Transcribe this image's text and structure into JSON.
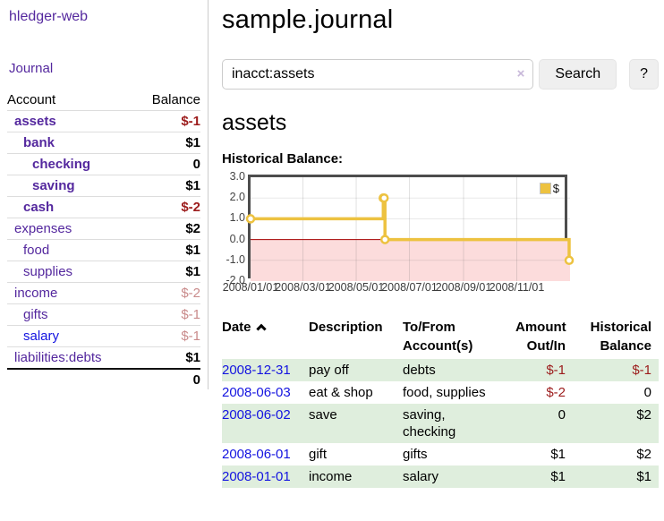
{
  "colors": {
    "link_purple": "#54289e",
    "link_blue": "#1414e0",
    "negative_strong": "#9c1c1c",
    "negative_faded": "#c98b8b",
    "row_stripe_green": "#dfeedd",
    "series_gold": "#edc240"
  },
  "sidebar": {
    "app_title": "hledger-web",
    "journal_link": "Journal",
    "accounts": {
      "header_account": "Account",
      "header_balance": "Balance",
      "rows": [
        {
          "name": "assets",
          "depth": 1,
          "selected": true,
          "balance": "$-1",
          "negative": "strong"
        },
        {
          "name": "bank",
          "depth": 2,
          "selected": true,
          "balance": "$1"
        },
        {
          "name": "checking",
          "depth": 3,
          "selected": true,
          "balance": "0"
        },
        {
          "name": "saving",
          "depth": 3,
          "selected": true,
          "balance": "$1"
        },
        {
          "name": "cash",
          "depth": 2,
          "selected": true,
          "balance": "$-2",
          "negative": "strong"
        },
        {
          "name": "expenses",
          "depth": 1,
          "selected": false,
          "balance": "$2"
        },
        {
          "name": "food",
          "depth": 2,
          "selected": false,
          "balance": "$1"
        },
        {
          "name": "supplies",
          "depth": 2,
          "selected": false,
          "balance": "$1"
        },
        {
          "name": "income",
          "depth": 1,
          "selected": false,
          "balance": "$-2",
          "negative": "faded"
        },
        {
          "name": "gifts",
          "depth": 2,
          "selected": false,
          "balance": "$-1",
          "negative": "faded"
        },
        {
          "name": "salary",
          "depth": 2,
          "selected": false,
          "balance": "$-1",
          "negative": "faded",
          "link": "blue"
        },
        {
          "name": "liabilities:debts",
          "depth": 1,
          "selected": false,
          "balance": "$1"
        }
      ],
      "total": "0"
    }
  },
  "main": {
    "title": "sample.journal",
    "search": {
      "value": "inacct:assets",
      "clear_icon": "×",
      "button_label": "Search",
      "help_label": "?"
    },
    "account_heading": "assets",
    "chart_label": "Historical Balance:",
    "register": {
      "headers": {
        "date": "Date",
        "description": "Description",
        "tofrom_line1": "To/From",
        "tofrom_line2": "Account(s)",
        "amount_line1": "Amount",
        "amount_line2": "Out/In",
        "balance_line1": "Historical",
        "balance_line2": "Balance"
      },
      "sort": "ascending",
      "rows": [
        {
          "date": "2008-12-31",
          "description": "pay off",
          "accounts": "debts",
          "amount": "$-1",
          "amount_neg": true,
          "balance": "$-1",
          "balance_neg": true
        },
        {
          "date": "2008-06-03",
          "description": "eat & shop",
          "accounts": "food, supplies",
          "amount": "$-2",
          "amount_neg": true,
          "balance": "0",
          "balance_neg": false
        },
        {
          "date": "2008-06-02",
          "description": "save",
          "accounts": "saving, checking",
          "amount": "0",
          "amount_neg": false,
          "balance": "$2",
          "balance_neg": false
        },
        {
          "date": "2008-06-01",
          "description": "gift",
          "accounts": "gifts",
          "amount": "$1",
          "amount_neg": false,
          "balance": "$2",
          "balance_neg": false
        },
        {
          "date": "2008-01-01",
          "description": "income",
          "accounts": "salary",
          "amount": "$1",
          "amount_neg": false,
          "balance": "$1",
          "balance_neg": false
        }
      ]
    }
  },
  "chart_data": {
    "type": "line",
    "title": "Historical Balance:",
    "step": true,
    "x_range": [
      "2008-01-01",
      "2009-01-01"
    ],
    "ylim": [
      -2,
      3
    ],
    "y_ticks": [
      "3.0",
      "2.0",
      "1.0",
      "0.0",
      "-1.0",
      "-2.0"
    ],
    "y_tick_values": [
      3,
      2,
      1,
      0,
      -1,
      -2
    ],
    "x_ticks": [
      "2008/01/01",
      "2008/03/01",
      "2008/05/01",
      "2008/07/01",
      "2008/09/01",
      "2008/11/01"
    ],
    "x_tick_dates": [
      "2008-01-01",
      "2008-03-01",
      "2008-05-01",
      "2008-07-01",
      "2008-09-01",
      "2008-11-01"
    ],
    "series": [
      {
        "name": "$",
        "color": "#edc240",
        "points": [
          {
            "x": "2008-01-01",
            "y": 1
          },
          {
            "x": "2008-06-01",
            "y": 2
          },
          {
            "x": "2008-06-02",
            "y": 2
          },
          {
            "x": "2008-06-03",
            "y": 0
          },
          {
            "x": "2008-12-31",
            "y": -1
          }
        ]
      }
    ],
    "legend": {
      "label": "$",
      "position": "top-right"
    },
    "negative_region_color": "#fcdcdc",
    "zero_line_color": "#a40000",
    "grid_color": "#e2e2e2"
  }
}
